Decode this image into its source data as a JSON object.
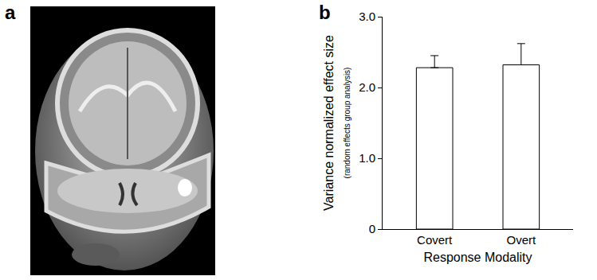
{
  "panel_labels": [
    "a",
    "b"
  ],
  "chart_data": {
    "type": "bar",
    "y_label": "Variance normalized effect size",
    "y_sublabel": "(random effects group analysis)",
    "x_label": "Response Modality",
    "categories": [
      "Covert",
      "Overt"
    ],
    "values": [
      2.28,
      2.32
    ],
    "errors": [
      0.17,
      0.3
    ],
    "colors": [
      "#ffffff",
      "#8c8c8c"
    ],
    "ylim": [
      0,
      3
    ],
    "yticks": [
      0,
      {
        "value": 1,
        "label": "1.0"
      },
      {
        "value": 2,
        "label": "2.0"
      },
      {
        "value": 3,
        "label": "3.0"
      }
    ],
    "grid": false
  }
}
